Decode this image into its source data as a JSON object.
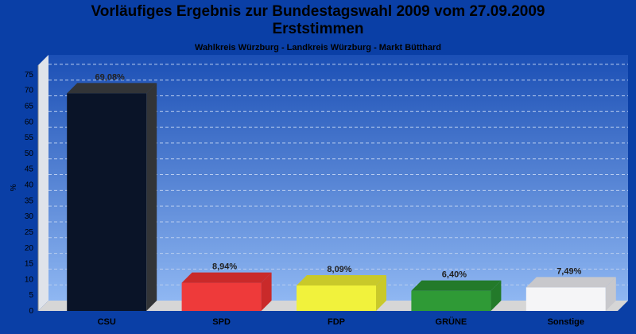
{
  "title_line1": "Vorläufiges Ergebnis zur Bundestagswahl 2009 vom 27.09.2009",
  "title_line2": "Erststimmen",
  "subtitle": "Wahlkreis Würzburg - Landkreis Würzburg - Markt Bütthard",
  "chart_data": {
    "type": "bar",
    "categories": [
      "CSU",
      "SPD",
      "FDP",
      "GRÜNE",
      "Sonstige"
    ],
    "values": [
      69.08,
      8.94,
      8.09,
      6.4,
      7.49
    ],
    "value_labels": [
      "69,08%",
      "8,94%",
      "8,09%",
      "6,40%",
      "7,49%"
    ],
    "ylabel": "%",
    "ylim": [
      0,
      78
    ],
    "yticks": [
      0,
      5,
      10,
      15,
      20,
      25,
      30,
      35,
      40,
      45,
      50,
      55,
      60,
      65,
      70,
      75
    ],
    "grid": true,
    "legend": "none",
    "colors": {
      "CSU": [
        "#0a1428",
        "#323437"
      ],
      "SPD": [
        "#ee3a3a",
        "#c92a2a"
      ],
      "FDP": [
        "#f1f23c",
        "#c9c92a"
      ],
      "GRÜNE": [
        "#2f9a36",
        "#237a2a"
      ],
      "Sonstige": [
        "#f5f5f7",
        "#c8c8cc"
      ]
    },
    "plot_gradient": [
      "#1b4fb5",
      "#8fb7f2"
    ]
  }
}
